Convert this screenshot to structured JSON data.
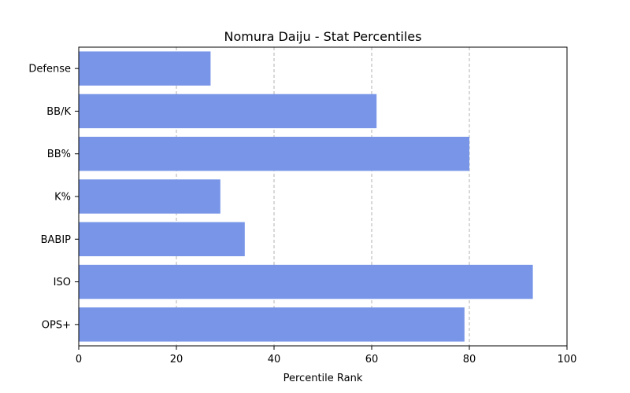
{
  "chart_data": {
    "type": "bar",
    "orientation": "horizontal",
    "title": "Nomura Daiju - Stat Percentiles",
    "xlabel": "Percentile Rank",
    "ylabel": "",
    "xlim": [
      0,
      100
    ],
    "xticks": [
      0,
      20,
      40,
      60,
      80,
      100
    ],
    "grid": "vertical-dashed",
    "categories": [
      "Defense",
      "BB/K",
      "BB%",
      "K%",
      "BABIP",
      "ISO",
      "OPS+"
    ],
    "values": [
      27,
      61,
      80,
      29,
      34,
      93,
      79
    ],
    "bar_color": "#7895e8"
  }
}
